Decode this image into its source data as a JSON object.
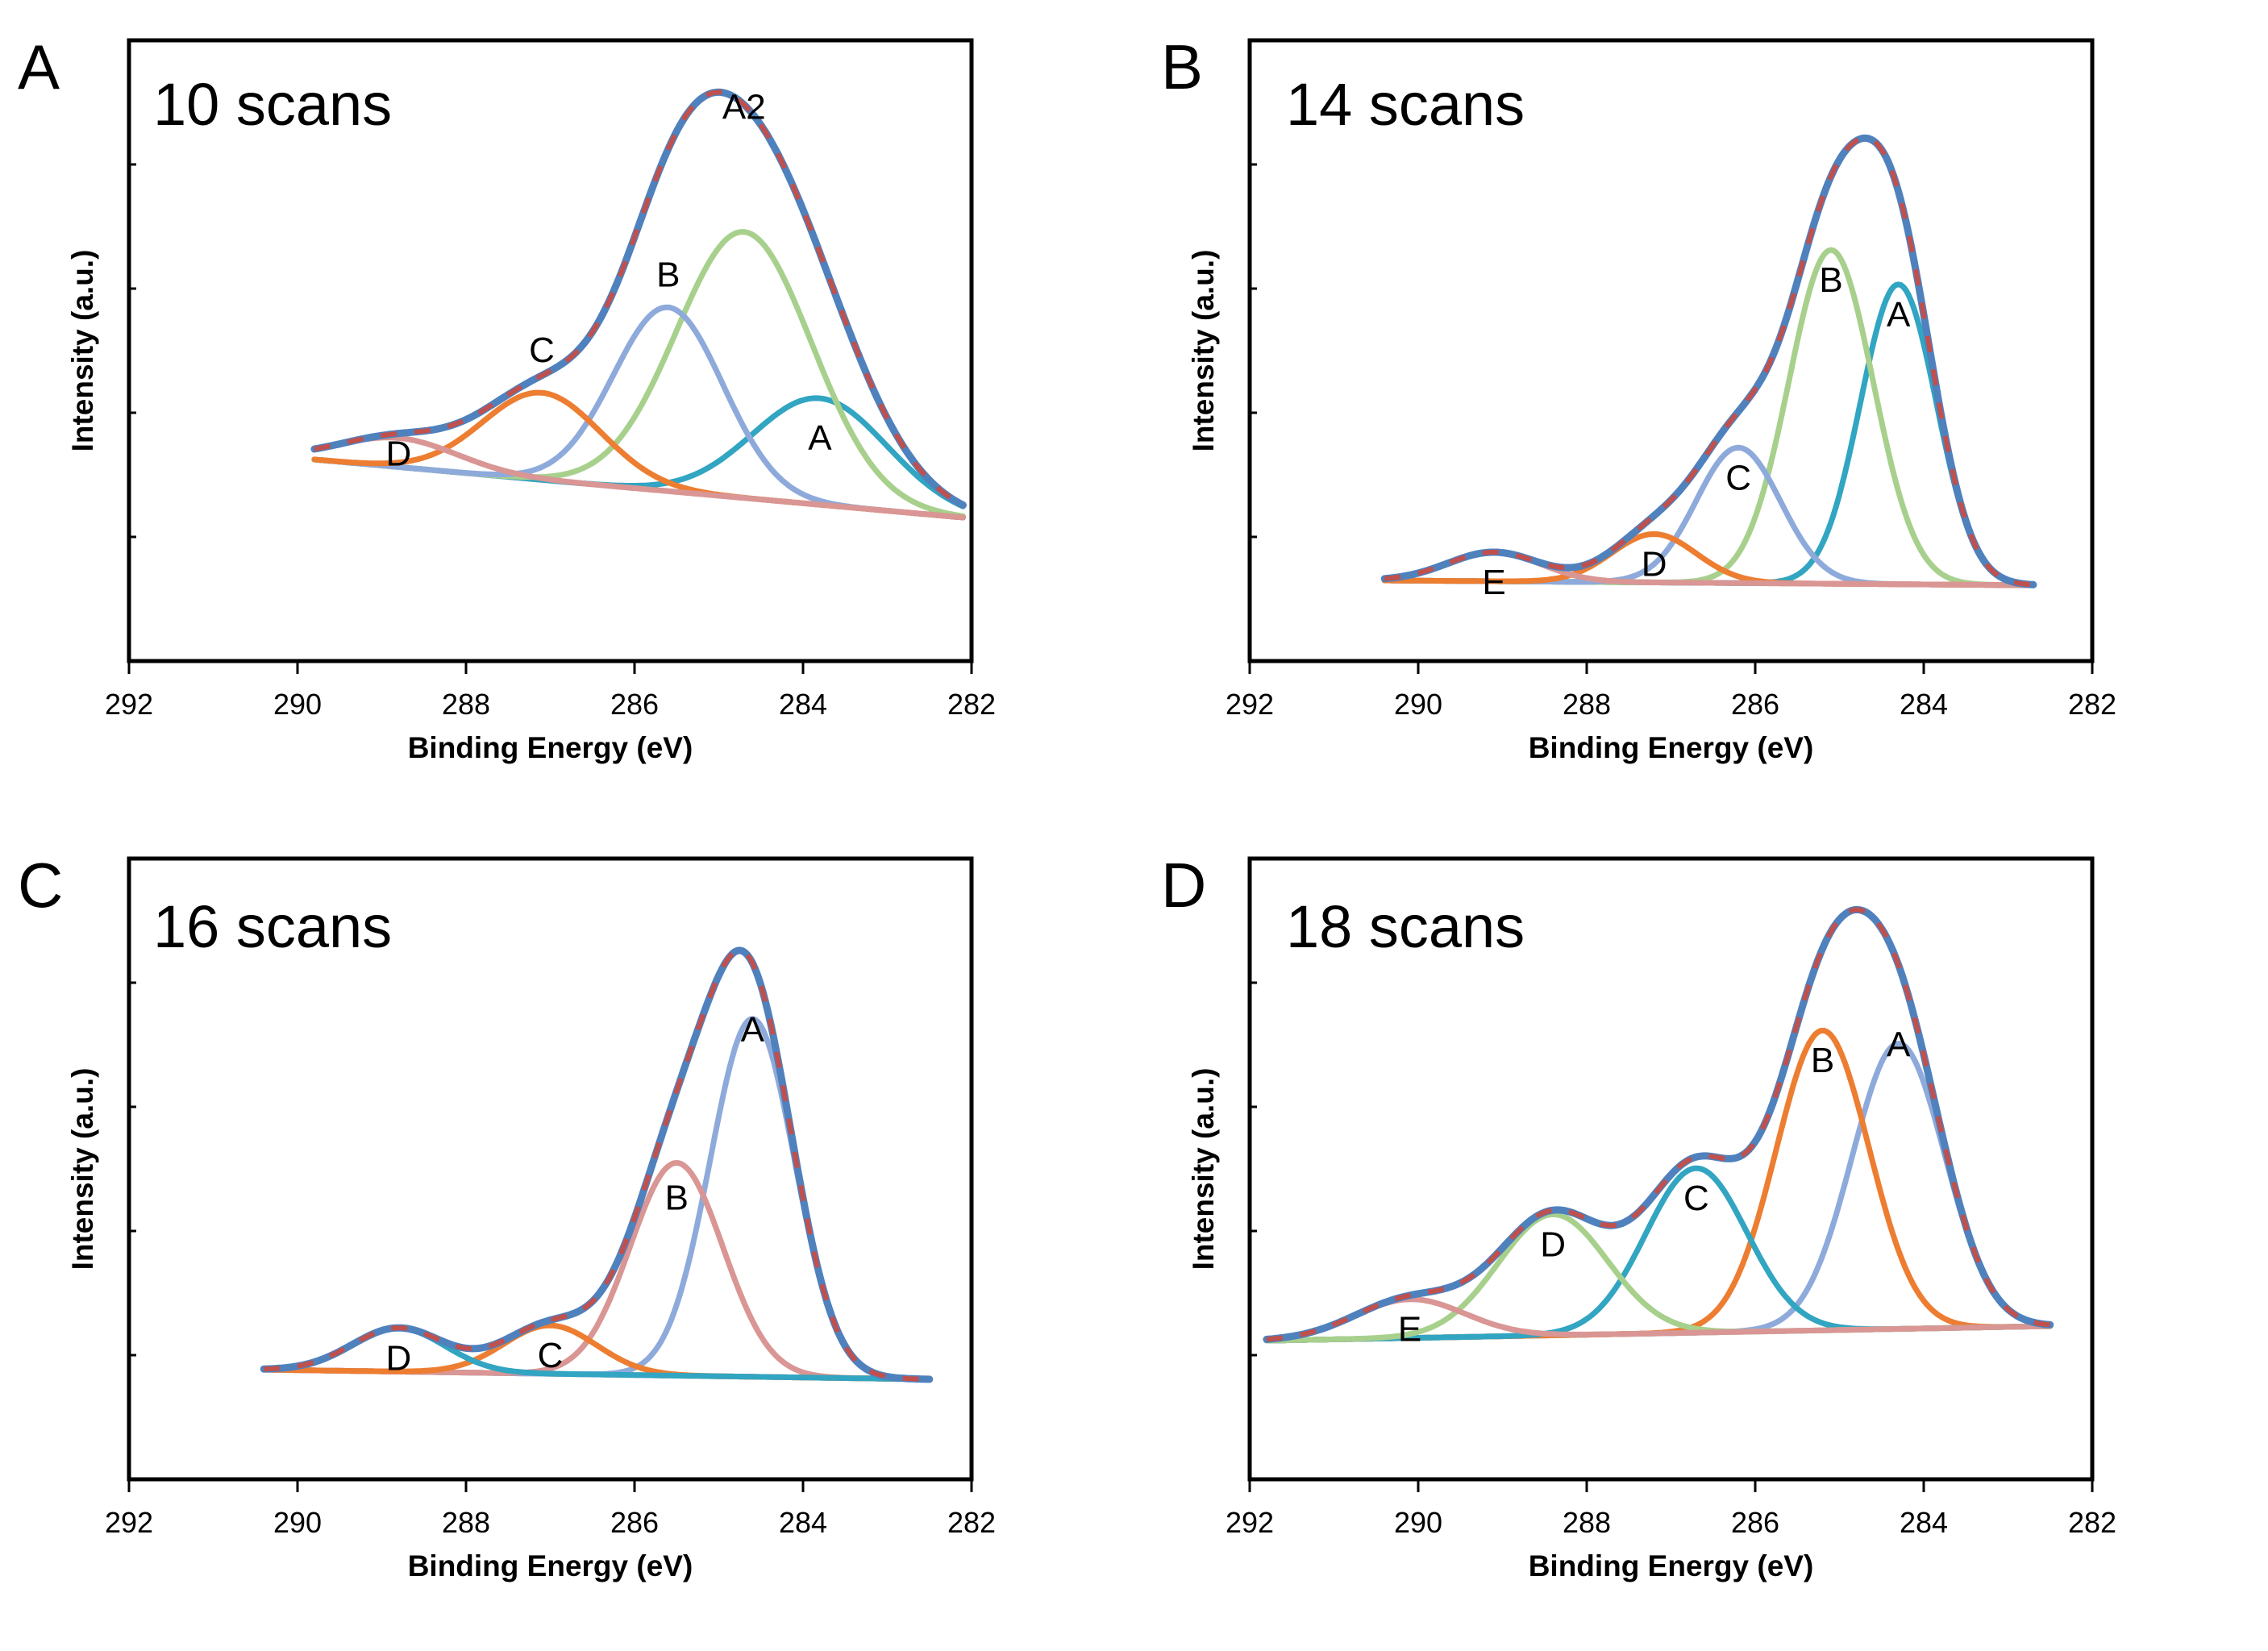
{
  "chart_data": [
    {
      "type": "line",
      "panel": "A",
      "title": "10 scans",
      "xlabel": "Binding Energy (eV)",
      "ylabel": "Intensity (a.u.)",
      "xlim": [
        292,
        282
      ],
      "ylim": [
        0,
        1.1
      ],
      "xticks": [
        292,
        290,
        288,
        286,
        284,
        282
      ],
      "envelope": {
        "range": [
          289.8,
          282.1
        ],
        "color": "#4f81bd",
        "dash_color": "#c0504d"
      },
      "background": {
        "range": [
          289.8,
          282.1
        ],
        "y_start": 0.3,
        "y_end": 0.18,
        "color": "#d99694"
      },
      "peaks": [
        {
          "name": "A",
          "center": 283.8,
          "height": 0.22,
          "sigma": 0.8,
          "color": "#31a5c1",
          "label_x": 283.8,
          "label_y": 0.14
        },
        {
          "name": "A2",
          "center": 284.7,
          "height": 0.55,
          "sigma": 0.8,
          "color": "#a8d08d",
          "label_x": 284.7,
          "label_y": 0.81
        },
        {
          "name": "B",
          "center": 285.6,
          "height": 0.38,
          "sigma": 0.65,
          "color": "#8eaadb",
          "label_x": 285.6,
          "label_y": 0.45
        },
        {
          "name": "C",
          "center": 287.1,
          "height": 0.18,
          "sigma": 0.7,
          "color": "#ed7d31",
          "label_x": 287.1,
          "label_y": 0.27
        },
        {
          "name": "D",
          "center": 288.8,
          "height": 0.06,
          "sigma": 0.7,
          "color": "#d99694",
          "label_x": 288.8,
          "label_y": 0.03
        }
      ]
    },
    {
      "type": "line",
      "panel": "B",
      "title": "14 scans",
      "xlabel": "Binding Energy (eV)",
      "ylabel": "Intensity (a.u.)",
      "xlim": [
        292,
        282
      ],
      "ylim": [
        0,
        1.1
      ],
      "xticks": [
        292,
        290,
        288,
        286,
        284,
        282
      ],
      "envelope": {
        "range": [
          290.4,
          282.7
        ],
        "color": "#4f81bd",
        "dash_color": "#c0504d"
      },
      "background": {
        "range": [
          290.4,
          282.7
        ],
        "y_start": 0.05,
        "y_end": 0.04,
        "color": "#d99694"
      },
      "peaks": [
        {
          "name": "A",
          "center": 284.3,
          "height": 0.62,
          "sigma": 0.45,
          "color": "#31a5c1",
          "label_x": 284.3,
          "label_y": 0.56
        },
        {
          "name": "B",
          "center": 285.1,
          "height": 0.69,
          "sigma": 0.5,
          "color": "#a8d08d",
          "label_x": 285.1,
          "label_y": 0.63
        },
        {
          "name": "C",
          "center": 286.2,
          "height": 0.28,
          "sigma": 0.5,
          "color": "#8eaadb",
          "label_x": 286.2,
          "label_y": 0.22
        },
        {
          "name": "D",
          "center": 287.2,
          "height": 0.1,
          "sigma": 0.5,
          "color": "#ed7d31",
          "label_x": 287.2,
          "label_y": 0.04
        },
        {
          "name": "E",
          "center": 289.1,
          "height": 0.06,
          "sigma": 0.55,
          "color": "#d99694",
          "label_x": 289.1,
          "label_y": 0.0
        }
      ]
    },
    {
      "type": "line",
      "panel": "C",
      "title": "16 scans",
      "xlabel": "Binding Energy (eV)",
      "ylabel": "Intensity (a.u.)",
      "xlim": [
        292,
        282
      ],
      "ylim": [
        0,
        1.1
      ],
      "xticks": [
        292,
        290,
        288,
        286,
        284,
        282
      ],
      "envelope": {
        "range": [
          290.4,
          282.5
        ],
        "color": "#4f81bd",
        "dash_color": "#c0504d"
      },
      "background": {
        "range": [
          290.4,
          282.5
        ],
        "y_start": 0.11,
        "y_end": 0.09,
        "color": "#d99694"
      },
      "peaks": [
        {
          "name": "A",
          "center": 284.6,
          "height": 0.74,
          "sigma": 0.5,
          "color": "#8eaadb",
          "label_x": 284.6,
          "label_y": 0.72
        },
        {
          "name": "B",
          "center": 285.5,
          "height": 0.44,
          "sigma": 0.55,
          "color": "#d99694",
          "label_x": 285.5,
          "label_y": 0.37
        },
        {
          "name": "C",
          "center": 287.0,
          "height": 0.1,
          "sigma": 0.55,
          "color": "#ed7d31",
          "label_x": 287.0,
          "label_y": 0.04
        },
        {
          "name": "D",
          "center": 288.8,
          "height": 0.09,
          "sigma": 0.55,
          "color": "#31a5c1",
          "label_x": 288.8,
          "label_y": 0.03
        }
      ]
    },
    {
      "type": "line",
      "panel": "D",
      "title": "18 scans",
      "xlabel": "Binding Energy (eV)",
      "ylabel": "Intensity (a.u.)",
      "xlim": [
        292,
        282
      ],
      "ylim": [
        0,
        1.1
      ],
      "xticks": [
        292,
        290,
        288,
        286,
        284,
        282
      ],
      "envelope": {
        "range": [
          291.8,
          282.5
        ],
        "color": "#4f81bd",
        "dash_color": "#c0504d"
      },
      "background": {
        "range": [
          291.8,
          282.5
        ],
        "y_start": 0.17,
        "y_end": 0.2,
        "color": "#a8d08d"
      },
      "peaks": [
        {
          "name": "A",
          "center": 284.3,
          "height": 0.59,
          "sigma": 0.55,
          "color": "#8eaadb",
          "label_x": 284.3,
          "label_y": 0.59
        },
        {
          "name": "B",
          "center": 285.2,
          "height": 0.62,
          "sigma": 0.55,
          "color": "#ed7d31",
          "label_x": 285.2,
          "label_y": 0.56
        },
        {
          "name": "C",
          "center": 286.7,
          "height": 0.34,
          "sigma": 0.6,
          "color": "#31a5c1",
          "label_x": 286.7,
          "label_y": 0.28
        },
        {
          "name": "D",
          "center": 288.4,
          "height": 0.25,
          "sigma": 0.65,
          "color": "#a8d08d",
          "label_x": 288.4,
          "label_y": 0.19
        },
        {
          "name": "E",
          "center": 290.1,
          "height": 0.08,
          "sigma": 0.65,
          "color": "#d99694",
          "label_x": 290.1,
          "label_y": 0.02
        }
      ]
    }
  ]
}
